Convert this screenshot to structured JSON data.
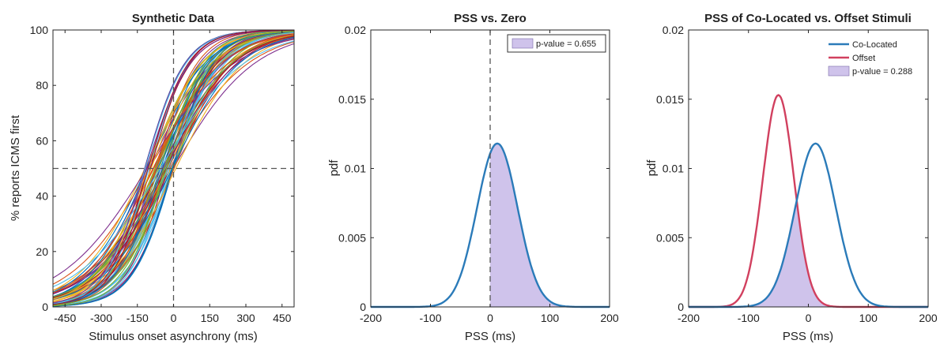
{
  "chart_data": [
    {
      "type": "line",
      "title": "Synthetic Data",
      "xlabel": "Stimulus onset asynchrony (ms)",
      "ylabel": "% reports ICMS first",
      "xlim": [
        -500,
        500
      ],
      "ylim": [
        0,
        100
      ],
      "xticks": [
        "-450",
        "-300",
        "-150",
        "0",
        "150",
        "300",
        "450"
      ],
      "yticks": [
        "0",
        "20",
        "40",
        "60",
        "80",
        "100"
      ],
      "reference_lines": {
        "vertical_x": 0,
        "horizontal_y": 50,
        "style": "dashed"
      },
      "series_description": "many psychometric curves",
      "curve_family": {
        "count": 70,
        "pss_range_ms": [
          -120,
          10
        ],
        "slope_range": [
          0.0055,
          0.0125
        ]
      },
      "colors": [
        "#0072BD",
        "#D95319",
        "#EDB120",
        "#7E2F8E",
        "#77AC30",
        "#4DBEEE",
        "#A2142F"
      ],
      "grid": false
    },
    {
      "type": "area",
      "title": "PSS vs. Zero",
      "xlabel": "PSS (ms)",
      "ylabel": "pdf",
      "xlim": [
        -200,
        200
      ],
      "ylim": [
        0,
        0.02
      ],
      "xticks": [
        "-200",
        "-100",
        "0",
        "100",
        "200"
      ],
      "yticks": [
        "0",
        "0.005",
        "0.01",
        "0.015",
        "0.02"
      ],
      "series": [
        {
          "mean": 12,
          "sd": 34,
          "peak": 0.0118,
          "color": "#2b7bb9"
        }
      ],
      "shaded_region": {
        "from": 0,
        "to": 200,
        "color": "#cfc3eb"
      },
      "reference_lines": {
        "vertical_x": 0,
        "style": "dashed"
      },
      "legend": {
        "position": "top-right",
        "entries": [
          {
            "label": "p-value = 0.655",
            "type": "patch",
            "color": "#cfc3eb"
          }
        ]
      },
      "grid": false
    },
    {
      "type": "area",
      "title": "PSS of Co-Located vs. Offset Stimuli",
      "xlabel": "PSS (ms)",
      "ylabel": "pdf",
      "xlim": [
        -200,
        200
      ],
      "ylim": [
        0,
        0.02
      ],
      "xticks": [
        "-200",
        "-100",
        "0",
        "100",
        "200"
      ],
      "yticks": [
        "0",
        "0.005",
        "0.01",
        "0.015",
        "0.02"
      ],
      "series": [
        {
          "name": "Co-Located",
          "mean": 12,
          "sd": 34,
          "peak": 0.0118,
          "color": "#2b7bb9"
        },
        {
          "name": "Offset",
          "mean": -50,
          "sd": 26,
          "peak": 0.0153,
          "color": "#d1405f"
        }
      ],
      "shaded_region": {
        "overlap_of": [
          "Co-Located",
          "Offset"
        ],
        "color": "#cfc3eb"
      },
      "legend": {
        "position": "top-right",
        "entries": [
          {
            "label": "Co-Located",
            "type": "line",
            "color": "#2b7bb9"
          },
          {
            "label": "Offset",
            "type": "line",
            "color": "#d1405f"
          },
          {
            "label": "p-value = 0.288",
            "type": "patch",
            "color": "#cfc3eb"
          }
        ]
      },
      "grid": false
    }
  ]
}
